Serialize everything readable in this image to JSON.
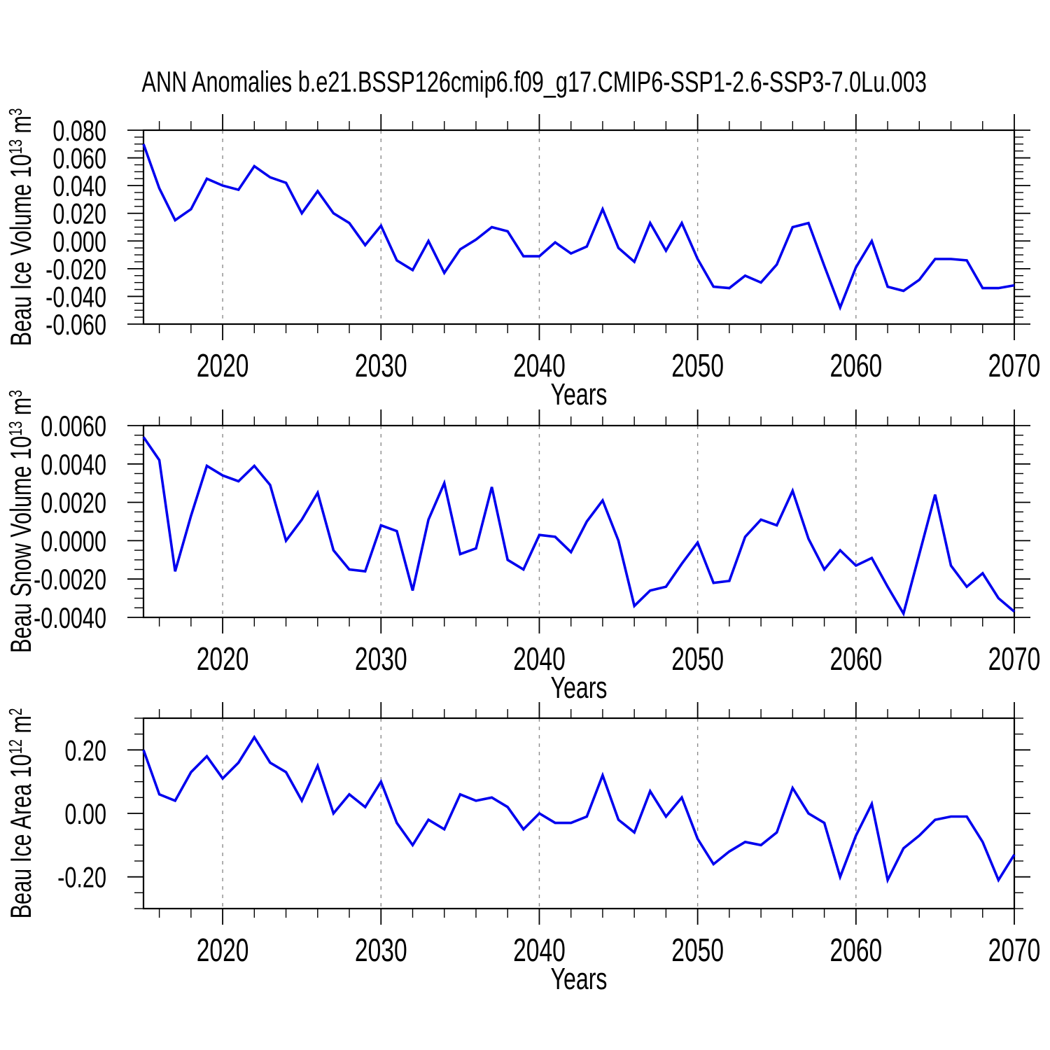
{
  "title": "ANN Anomalies b.e21.BSSP126cmip6.f09_g17.CMIP6-SSP1-2.6-SSP3-7.0Lu.003",
  "colors": {
    "line": "#0000ee",
    "grid": "#8c8c8c",
    "axis": "#000000"
  },
  "chart_data": [
    {
      "type": "line",
      "xlabel": "Years",
      "ylabel": "Beau Ice Volume 10^13 m^3",
      "ylabel_parts": [
        {
          "t": "Beau Ice Volume 10"
        },
        {
          "t": "13",
          "sup": true
        },
        {
          "t": " m"
        },
        {
          "t": "3",
          "sup": true
        }
      ],
      "xlim": [
        2015,
        2070
      ],
      "ylim": [
        -0.06,
        0.08
      ],
      "ytick_minor": 0.005,
      "grid_years": [
        2020,
        2030,
        2040,
        2050,
        2060
      ],
      "xtick_labels": [
        {
          "v": 2020,
          "t": "2020"
        },
        {
          "v": 2030,
          "t": "2030"
        },
        {
          "v": 2040,
          "t": "2040"
        },
        {
          "v": 2050,
          "t": "2050"
        },
        {
          "v": 2060,
          "t": "2060"
        },
        {
          "v": 2070,
          "t": "2070"
        }
      ],
      "ytick_labels": [
        {
          "v": 0.08,
          "t": "0.080"
        },
        {
          "v": 0.06,
          "t": "0.060"
        },
        {
          "v": 0.04,
          "t": "0.040"
        },
        {
          "v": 0.02,
          "t": "0.020"
        },
        {
          "v": 0.0,
          "t": "0.000"
        },
        {
          "v": -0.02,
          "t": "-0.020"
        },
        {
          "v": -0.04,
          "t": "-0.040"
        },
        {
          "v": -0.06,
          "t": "-0.060"
        }
      ],
      "x": [
        2015,
        2016,
        2017,
        2018,
        2019,
        2020,
        2021,
        2022,
        2023,
        2024,
        2025,
        2026,
        2027,
        2028,
        2029,
        2030,
        2031,
        2032,
        2033,
        2034,
        2035,
        2036,
        2037,
        2038,
        2039,
        2040,
        2041,
        2042,
        2043,
        2044,
        2045,
        2046,
        2047,
        2048,
        2049,
        2050,
        2051,
        2052,
        2053,
        2054,
        2055,
        2056,
        2057,
        2058,
        2059,
        2060,
        2061,
        2062,
        2063,
        2064,
        2065,
        2066,
        2067,
        2068,
        2069,
        2070
      ],
      "values": [
        0.07,
        0.038,
        0.015,
        0.023,
        0.045,
        0.04,
        0.037,
        0.054,
        0.046,
        0.042,
        0.02,
        0.036,
        0.02,
        0.013,
        -0.003,
        0.011,
        -0.014,
        -0.021,
        0.0,
        -0.023,
        -0.006,
        0.001,
        0.01,
        0.007,
        -0.011,
        -0.011,
        -0.001,
        -0.009,
        -0.004,
        0.023,
        -0.005,
        -0.015,
        0.013,
        -0.007,
        0.013,
        -0.013,
        -0.033,
        -0.034,
        -0.025,
        -0.03,
        -0.017,
        0.01,
        0.013,
        -0.018,
        -0.048,
        -0.019,
        0.0,
        -0.033,
        -0.036,
        -0.028,
        -0.013,
        -0.013,
        -0.014,
        -0.034,
        -0.034,
        -0.032
      ]
    },
    {
      "type": "line",
      "xlabel": "Years",
      "ylabel": "Beau Snow Volume 10^13 m^3",
      "ylabel_parts": [
        {
          "t": "Beau Snow Volume 10"
        },
        {
          "t": "13",
          "sup": true
        },
        {
          "t": " m"
        },
        {
          "t": "3",
          "sup": true
        }
      ],
      "xlim": [
        2015,
        2070
      ],
      "ylim": [
        -0.004,
        0.006
      ],
      "ytick_minor": 0.0005,
      "grid_years": [
        2020,
        2030,
        2040,
        2050,
        2060
      ],
      "xtick_labels": [
        {
          "v": 2020,
          "t": "2020"
        },
        {
          "v": 2030,
          "t": "2030"
        },
        {
          "v": 2040,
          "t": "2040"
        },
        {
          "v": 2050,
          "t": "2050"
        },
        {
          "v": 2060,
          "t": "2060"
        },
        {
          "v": 2070,
          "t": "2070"
        }
      ],
      "ytick_labels": [
        {
          "v": 0.006,
          "t": "0.0060"
        },
        {
          "v": 0.004,
          "t": "0.0040"
        },
        {
          "v": 0.002,
          "t": "0.0020"
        },
        {
          "v": 0.0,
          "t": "0.0000"
        },
        {
          "v": -0.002,
          "t": "-0.0020"
        },
        {
          "v": -0.004,
          "t": "-0.0040"
        }
      ],
      "x": [
        2015,
        2016,
        2017,
        2018,
        2019,
        2020,
        2021,
        2022,
        2023,
        2024,
        2025,
        2026,
        2027,
        2028,
        2029,
        2030,
        2031,
        2032,
        2033,
        2034,
        2035,
        2036,
        2037,
        2038,
        2039,
        2040,
        2041,
        2042,
        2043,
        2044,
        2045,
        2046,
        2047,
        2048,
        2049,
        2050,
        2051,
        2052,
        2053,
        2054,
        2055,
        2056,
        2057,
        2058,
        2059,
        2060,
        2061,
        2062,
        2063,
        2064,
        2065,
        2066,
        2067,
        2068,
        2069,
        2070
      ],
      "values": [
        0.0054,
        0.0042,
        -0.0016,
        0.0013,
        0.0039,
        0.0034,
        0.0031,
        0.0039,
        0.0029,
        0.0,
        0.0011,
        0.0025,
        -0.0005,
        -0.0015,
        -0.0016,
        0.0008,
        0.0005,
        -0.0026,
        0.0011,
        0.003,
        -0.0007,
        -0.0004,
        0.0028,
        -0.001,
        -0.0015,
        0.0003,
        0.0002,
        -0.0006,
        0.001,
        0.0021,
        0.0,
        -0.0034,
        -0.0026,
        -0.0024,
        -0.0012,
        -0.0001,
        -0.0022,
        -0.0021,
        0.0002,
        0.0011,
        0.0008,
        0.0026,
        0.0001,
        -0.0015,
        -0.0005,
        -0.0013,
        -0.0009,
        -0.0024,
        -0.0038,
        -0.0007,
        0.0024,
        -0.0013,
        -0.0024,
        -0.0017,
        -0.003,
        -0.0037
      ]
    },
    {
      "type": "line",
      "xlabel": "Years",
      "ylabel": "Beau Ice Area 10^12 m^2",
      "ylabel_parts": [
        {
          "t": "Beau Ice Area 10"
        },
        {
          "t": "12",
          "sup": true
        },
        {
          "t": " m"
        },
        {
          "t": "2",
          "sup": true
        }
      ],
      "xlim": [
        2015,
        2070
      ],
      "ylim": [
        -0.3,
        0.3
      ],
      "ytick_minor": 0.05,
      "grid_years": [
        2020,
        2030,
        2040,
        2050,
        2060
      ],
      "xtick_labels": [
        {
          "v": 2020,
          "t": "2020"
        },
        {
          "v": 2030,
          "t": "2030"
        },
        {
          "v": 2040,
          "t": "2040"
        },
        {
          "v": 2050,
          "t": "2050"
        },
        {
          "v": 2060,
          "t": "2060"
        },
        {
          "v": 2070,
          "t": "2070"
        }
      ],
      "ytick_labels": [
        {
          "v": 0.2,
          "t": "0.20"
        },
        {
          "v": 0.0,
          "t": "0.00"
        },
        {
          "v": -0.2,
          "t": "-0.20"
        }
      ],
      "x": [
        2015,
        2016,
        2017,
        2018,
        2019,
        2020,
        2021,
        2022,
        2023,
        2024,
        2025,
        2026,
        2027,
        2028,
        2029,
        2030,
        2031,
        2032,
        2033,
        2034,
        2035,
        2036,
        2037,
        2038,
        2039,
        2040,
        2041,
        2042,
        2043,
        2044,
        2045,
        2046,
        2047,
        2048,
        2049,
        2050,
        2051,
        2052,
        2053,
        2054,
        2055,
        2056,
        2057,
        2058,
        2059,
        2060,
        2061,
        2062,
        2063,
        2064,
        2065,
        2066,
        2067,
        2068,
        2069,
        2070
      ],
      "values": [
        0.2,
        0.06,
        0.04,
        0.13,
        0.18,
        0.11,
        0.16,
        0.24,
        0.16,
        0.13,
        0.04,
        0.15,
        0.0,
        0.06,
        0.02,
        0.1,
        -0.03,
        -0.1,
        -0.02,
        -0.05,
        0.06,
        0.04,
        0.05,
        0.02,
        -0.05,
        0.0,
        -0.03,
        -0.03,
        -0.01,
        0.12,
        -0.02,
        -0.06,
        0.07,
        -0.01,
        0.05,
        -0.08,
        -0.16,
        -0.12,
        -0.09,
        -0.1,
        -0.06,
        0.08,
        0.0,
        -0.03,
        -0.2,
        -0.07,
        0.03,
        -0.21,
        -0.11,
        -0.07,
        -0.02,
        -0.01,
        -0.01,
        -0.09,
        -0.21,
        -0.13
      ]
    }
  ]
}
